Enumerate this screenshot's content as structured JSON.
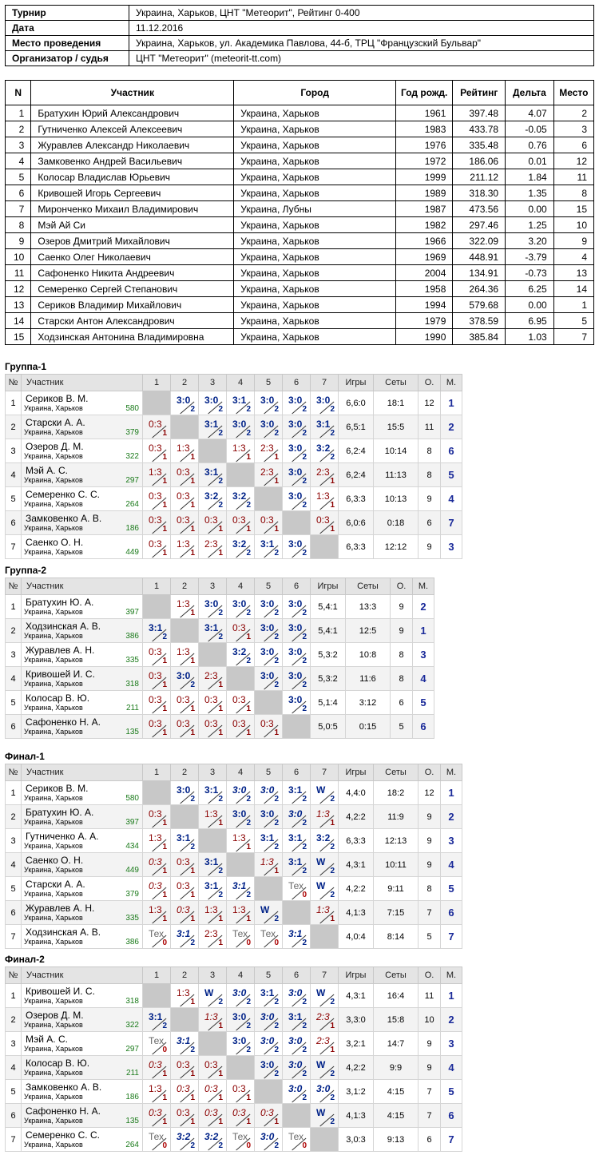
{
  "info": [
    {
      "label": "Турнир",
      "value": "Украина, Харьков, ЦНТ \"Метеорит\", Рейтинг 0-400"
    },
    {
      "label": "Дата",
      "value": "11.12.2016"
    },
    {
      "label": "Место проведения",
      "value": "Украина, Харьков, ул. Академика Павлова, 44-б, ТРЦ \"Французский Бульвар\""
    },
    {
      "label": "Организатор / судья",
      "value": "ЦНТ \"Метеорит\" (meteorit-tt.com)"
    }
  ],
  "participants": {
    "headers": [
      "N",
      "Участник",
      "Город",
      "Год рожд.",
      "Рейтинг",
      "Дельта",
      "Место"
    ],
    "rows": [
      [
        "1",
        "Братухин Юрий Александрович",
        "Украина, Харьков",
        "1961",
        "397.48",
        "4.07",
        "2"
      ],
      [
        "2",
        "Гутниченко Алексей Алексеевич",
        "Украина, Харьков",
        "1983",
        "433.78",
        "-0.05",
        "3"
      ],
      [
        "3",
        "Журавлев Александр Николаевич",
        "Украина, Харьков",
        "1976",
        "335.48",
        "0.76",
        "6"
      ],
      [
        "4",
        "Замковенко Андрей Васильевич",
        "Украина, Харьков",
        "1972",
        "186.06",
        "0.01",
        "12"
      ],
      [
        "5",
        "Колосар Владислав Юрьевич",
        "Украина, Харьков",
        "1999",
        "211.12",
        "1.84",
        "11"
      ],
      [
        "6",
        "Кривошей Игорь Сергеевич",
        "Украина, Харьков",
        "1989",
        "318.30",
        "1.35",
        "8"
      ],
      [
        "7",
        "Миронченко Михаил Владимирович",
        "Украина, Лубны",
        "1987",
        "473.56",
        "0.00",
        "15"
      ],
      [
        "8",
        "Мэй Ай Си",
        "Украина, Харьков",
        "1982",
        "297.46",
        "1.25",
        "10"
      ],
      [
        "9",
        "Озеров Дмитрий Михайлович",
        "Украина, Харьков",
        "1966",
        "322.09",
        "3.20",
        "9"
      ],
      [
        "10",
        "Саенко Олег Николаевич",
        "Украина, Харьков",
        "1969",
        "448.91",
        "-3.79",
        "4"
      ],
      [
        "11",
        "Сафоненко Никита Андреевич",
        "Украина, Харьков",
        "2004",
        "134.91",
        "-0.73",
        "13"
      ],
      [
        "12",
        "Семеренко Сергей Степанович",
        "Украина, Харьков",
        "1958",
        "264.36",
        "6.25",
        "14"
      ],
      [
        "13",
        "Сериков Владимир Михайлович",
        "Украина, Харьков",
        "1994",
        "579.68",
        "0.00",
        "1"
      ],
      [
        "14",
        "Старски Антон Александрович",
        "Украина, Харьков",
        "1979",
        "378.59",
        "6.95",
        "5"
      ],
      [
        "15",
        "Ходзинская Антонина Владимировна",
        "Украина, Харьков",
        "1990",
        "385.84",
        "1.03",
        "7"
      ]
    ]
  },
  "group_headers": {
    "num": "№",
    "player": "Участник",
    "games": "Игры",
    "sets": "Сеты",
    "points": "О.",
    "place": "М."
  },
  "groups": [
    {
      "title": "Группа-1",
      "players": [
        {
          "n": "1",
          "name": "Сериков В. М.",
          "city": "Украина, Харьков",
          "rating": "580",
          "results": [
            null,
            "3:0|2",
            "3:0|2",
            "3:1|2",
            "3:0|2",
            "3:0|2",
            "3:0|2"
          ],
          "games": "6,6:0",
          "sets": "18:1",
          "points": "12",
          "place": "1"
        },
        {
          "n": "2",
          "name": "Старски А. А.",
          "city": "Украина, Харьков",
          "rating": "379",
          "results": [
            "0:3|1",
            null,
            "3:1|2",
            "3:0|2",
            "3:0|2",
            "3:0|2",
            "3:1|2"
          ],
          "games": "6,5:1",
          "sets": "15:5",
          "points": "11",
          "place": "2"
        },
        {
          "n": "3",
          "name": "Озеров Д. М.",
          "city": "Украина, Харьков",
          "rating": "322",
          "results": [
            "0:3|1",
            "1:3|1",
            null,
            "1:3|1",
            "2:3|1",
            "3:0|2",
            "3:2|2"
          ],
          "games": "6,2:4",
          "sets": "10:14",
          "points": "8",
          "place": "6"
        },
        {
          "n": "4",
          "name": "Мэй А. С.",
          "city": "Украина, Харьков",
          "rating": "297",
          "results": [
            "1:3|1",
            "0:3|1",
            "3:1|2",
            null,
            "2:3|1",
            "3:0|2",
            "2:3|1"
          ],
          "games": "6,2:4",
          "sets": "11:13",
          "points": "8",
          "place": "5"
        },
        {
          "n": "5",
          "name": "Семеренко С. С.",
          "city": "Украина, Харьков",
          "rating": "264",
          "results": [
            "0:3|1",
            "0:3|1",
            "3:2|2",
            "3:2|2",
            null,
            "3:0|2",
            "1:3|1"
          ],
          "games": "6,3:3",
          "sets": "10:13",
          "points": "9",
          "place": "4"
        },
        {
          "n": "6",
          "name": "Замковенко А. В.",
          "city": "Украина, Харьков",
          "rating": "186",
          "results": [
            "0:3|1",
            "0:3|1",
            "0:3|1",
            "0:3|1",
            "0:3|1",
            null,
            "0:3|1"
          ],
          "games": "6,0:6",
          "sets": "0:18",
          "points": "6",
          "place": "7"
        },
        {
          "n": "7",
          "name": "Саенко О. Н.",
          "city": "Украина, Харьков",
          "rating": "449",
          "results": [
            "0:3|1",
            "1:3|1",
            "2:3|1",
            "3:2|2",
            "3:1|2",
            "3:0|2",
            null
          ],
          "games": "6,3:3",
          "sets": "12:12",
          "points": "9",
          "place": "3"
        }
      ]
    },
    {
      "title": "Группа-2",
      "players": [
        {
          "n": "1",
          "name": "Братухин Ю. А.",
          "city": "Украина, Харьков",
          "rating": "397",
          "results": [
            null,
            "1:3|1",
            "3:0|2",
            "3:0|2",
            "3:0|2",
            "3:0|2"
          ],
          "games": "5,4:1",
          "sets": "13:3",
          "points": "9",
          "place": "2"
        },
        {
          "n": "2",
          "name": "Ходзинская А. В.",
          "city": "Украина, Харьков",
          "rating": "386",
          "results": [
            "3:1|2",
            null,
            "3:1|2",
            "0:3|1",
            "3:0|2",
            "3:0|2"
          ],
          "games": "5,4:1",
          "sets": "12:5",
          "points": "9",
          "place": "1"
        },
        {
          "n": "3",
          "name": "Журавлев А. Н.",
          "city": "Украина, Харьков",
          "rating": "335",
          "results": [
            "0:3|1",
            "1:3|1",
            null,
            "3:2|2",
            "3:0|2",
            "3:0|2"
          ],
          "games": "5,3:2",
          "sets": "10:8",
          "points": "8",
          "place": "3"
        },
        {
          "n": "4",
          "name": "Кривошей И. С.",
          "city": "Украина, Харьков",
          "rating": "318",
          "results": [
            "0:3|1",
            "3:0|2",
            "2:3|1",
            null,
            "3:0|2",
            "3:0|2"
          ],
          "games": "5,3:2",
          "sets": "11:6",
          "points": "8",
          "place": "4"
        },
        {
          "n": "5",
          "name": "Колосар В. Ю.",
          "city": "Украина, Харьков",
          "rating": "211",
          "results": [
            "0:3|1",
            "0:3|1",
            "0:3|1",
            "0:3|1",
            null,
            "3:0|2"
          ],
          "games": "5,1:4",
          "sets": "3:12",
          "points": "6",
          "place": "5"
        },
        {
          "n": "6",
          "name": "Сафоненко Н. А.",
          "city": "Украина, Харьков",
          "rating": "135",
          "results": [
            "0:3|1",
            "0:3|1",
            "0:3|1",
            "0:3|1",
            "0:3|1",
            null
          ],
          "games": "5,0:5",
          "sets": "0:15",
          "points": "5",
          "place": "6"
        }
      ]
    },
    {
      "title": "Финал-1",
      "players": [
        {
          "n": "1",
          "name": "Сериков В. М.",
          "city": "Украина, Харьков",
          "rating": "580",
          "results": [
            null,
            "3:0|2",
            "3:1|2",
            "i3:0|2",
            "i3:0|2",
            "3:1|2",
            "W|2"
          ],
          "games": "4,4:0",
          "sets": "18:2",
          "points": "12",
          "place": "1"
        },
        {
          "n": "2",
          "name": "Братухин Ю. А.",
          "city": "Украина, Харьков",
          "rating": "397",
          "results": [
            "0:3|1",
            null,
            "1:3|1",
            "3:0|2",
            "3:0|2",
            "i3:0|2",
            "i1:3|1"
          ],
          "games": "4,2:2",
          "sets": "11:9",
          "points": "9",
          "place": "2"
        },
        {
          "n": "3",
          "name": "Гутниченко А. А.",
          "city": "Украина, Харьков",
          "rating": "434",
          "results": [
            "1:3|1",
            "3:1|2",
            null,
            "1:3|1",
            "3:1|2",
            "3:1|2",
            "3:2|2"
          ],
          "games": "6,3:3",
          "sets": "12:13",
          "points": "9",
          "place": "3"
        },
        {
          "n": "4",
          "name": "Саенко О. Н.",
          "city": "Украина, Харьков",
          "rating": "449",
          "results": [
            "i0:3|1",
            "0:3|1",
            "3:1|2",
            null,
            "i1:3|1",
            "3:1|2",
            "W|2"
          ],
          "games": "4,3:1",
          "sets": "10:11",
          "points": "9",
          "place": "4"
        },
        {
          "n": "5",
          "name": "Старски А. А.",
          "city": "Украина, Харьков",
          "rating": "379",
          "results": [
            "i0:3|1",
            "0:3|1",
            "3:1|2",
            "i3:1|2",
            null,
            "TТех|0",
            "W|2"
          ],
          "games": "4,2:2",
          "sets": "9:11",
          "points": "8",
          "place": "5"
        },
        {
          "n": "6",
          "name": "Журавлев А. Н.",
          "city": "Украина, Харьков",
          "rating": "335",
          "results": [
            "1:3|1",
            "i0:3|1",
            "1:3|1",
            "1:3|1",
            "W|2",
            null,
            "i1:3|1"
          ],
          "games": "4,1:3",
          "sets": "7:15",
          "points": "7",
          "place": "6"
        },
        {
          "n": "7",
          "name": "Ходзинская А. В.",
          "city": "Украина, Харьков",
          "rating": "386",
          "results": [
            "TТех|0",
            "i3:1|2",
            "2:3|1",
            "TТех|0",
            "TТех|0",
            "i3:1|2",
            null
          ],
          "games": "4,0:4",
          "sets": "8:14",
          "points": "5",
          "place": "7"
        }
      ]
    },
    {
      "title": "Финал-2",
      "players": [
        {
          "n": "1",
          "name": "Кривошей И. С.",
          "city": "Украина, Харьков",
          "rating": "318",
          "results": [
            null,
            "1:3|1",
            "W|2",
            "i3:0|2",
            "3:1|2",
            "i3:0|2",
            "W|2"
          ],
          "games": "4,3:1",
          "sets": "16:4",
          "points": "11",
          "place": "1"
        },
        {
          "n": "2",
          "name": "Озеров Д. М.",
          "city": "Украина, Харьков",
          "rating": "322",
          "results": [
            "3:1|2",
            null,
            "i1:3|1",
            "3:0|2",
            "i3:0|2",
            "3:1|2",
            "i2:3|1"
          ],
          "games": "3,3:0",
          "sets": "15:8",
          "points": "10",
          "place": "2"
        },
        {
          "n": "3",
          "name": "Мэй А. С.",
          "city": "Украина, Харьков",
          "rating": "297",
          "results": [
            "TТех|0",
            "i3:1|2",
            null,
            "3:0|2",
            "i3:0|2",
            "i3:0|2",
            "i2:3|1"
          ],
          "games": "3,2:1",
          "sets": "14:7",
          "points": "9",
          "place": "3"
        },
        {
          "n": "4",
          "name": "Колосар В. Ю.",
          "city": "Украина, Харьков",
          "rating": "211",
          "results": [
            "i0:3|1",
            "0:3|1",
            "0:3|1",
            null,
            "3:0|2",
            "i3:0|2",
            "W|2"
          ],
          "games": "4,2:2",
          "sets": "9:9",
          "points": "9",
          "place": "4"
        },
        {
          "n": "5",
          "name": "Замковенко А. В.",
          "city": "Украина, Харьков",
          "rating": "186",
          "results": [
            "1:3|1",
            "i0:3|1",
            "i0:3|1",
            "0:3|1",
            null,
            "i3:0|2",
            "i3:0|2"
          ],
          "games": "3,1:2",
          "sets": "4:15",
          "points": "7",
          "place": "5"
        },
        {
          "n": "6",
          "name": "Сафоненко Н. А.",
          "city": "Украина, Харьков",
          "rating": "135",
          "results": [
            "i0:3|1",
            "0:3|1",
            "i0:3|1",
            "i0:3|1",
            "i0:3|1",
            null,
            "W|2"
          ],
          "games": "4,1:3",
          "sets": "4:15",
          "points": "7",
          "place": "6"
        },
        {
          "n": "7",
          "name": "Семеренко С. С.",
          "city": "Украина, Харьков",
          "rating": "264",
          "results": [
            "TТех|0",
            "i3:2|2",
            "i3:2|2",
            "TТех|0",
            "i3:0|2",
            "TТех|0",
            null
          ],
          "games": "3,0:3",
          "sets": "9:13",
          "points": "6",
          "place": "7"
        }
      ]
    }
  ]
}
